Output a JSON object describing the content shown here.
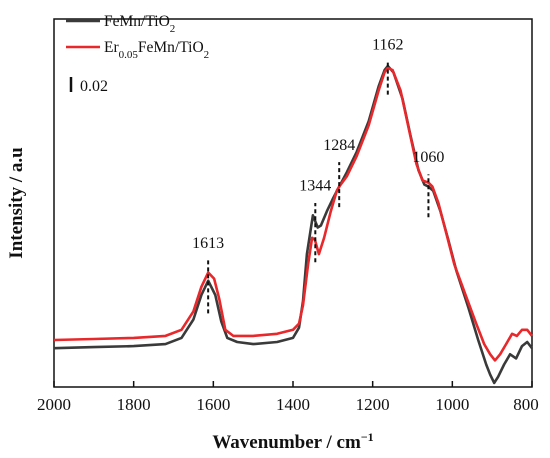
{
  "chart_data": {
    "type": "line",
    "xlabel": "Wavenumber / cm",
    "xlabel_sup": "−1",
    "ylabel": "Intensity / a.u",
    "xlim": [
      2000,
      800
    ],
    "x_reversed": true,
    "y_ticks_shown": false,
    "ylim": [
      -0.155,
      0.025
    ],
    "x_ticks": [
      "2000",
      "1800",
      "1600",
      "1400",
      "1200",
      "1000",
      "800"
    ],
    "x_tick_values": [
      2000,
      1800,
      1600,
      1400,
      1200,
      1000,
      800
    ],
    "scale_bar": {
      "label": "0.02",
      "value": 0.02
    },
    "legend": {
      "position": "top-left",
      "items": [
        {
          "text_main": "FeMn/TiO",
          "sub": "2",
          "text_after": "",
          "text_tail": ""
        },
        {
          "text_main": "Er",
          "sub": "0.05",
          "text_after": "FeMn/TiO",
          "sub2": "2"
        }
      ]
    },
    "series": [
      {
        "name": "FeMn/TiO2",
        "color": "#3a3a3a",
        "points": [
          [
            2000,
            -0.136
          ],
          [
            1900,
            -0.1355
          ],
          [
            1800,
            -0.135
          ],
          [
            1720,
            -0.134
          ],
          [
            1680,
            -0.131
          ],
          [
            1650,
            -0.122
          ],
          [
            1630,
            -0.11
          ],
          [
            1613,
            -0.103
          ],
          [
            1595,
            -0.11
          ],
          [
            1580,
            -0.123
          ],
          [
            1565,
            -0.131
          ],
          [
            1540,
            -0.133
          ],
          [
            1500,
            -0.134
          ],
          [
            1440,
            -0.133
          ],
          [
            1400,
            -0.131
          ],
          [
            1385,
            -0.126
          ],
          [
            1375,
            -0.113
          ],
          [
            1365,
            -0.09
          ],
          [
            1350,
            -0.071
          ],
          [
            1338,
            -0.077
          ],
          [
            1330,
            -0.076
          ],
          [
            1315,
            -0.069
          ],
          [
            1300,
            -0.063
          ],
          [
            1284,
            -0.057
          ],
          [
            1265,
            -0.05
          ],
          [
            1240,
            -0.04
          ],
          [
            1210,
            -0.025
          ],
          [
            1185,
            -0.008
          ],
          [
            1170,
            0.0
          ],
          [
            1162,
            0.002
          ],
          [
            1148,
            -0.001
          ],
          [
            1125,
            -0.014
          ],
          [
            1105,
            -0.032
          ],
          [
            1085,
            -0.049
          ],
          [
            1070,
            -0.056
          ],
          [
            1060,
            -0.057
          ],
          [
            1048,
            -0.059
          ],
          [
            1030,
            -0.069
          ],
          [
            1010,
            -0.083
          ],
          [
            990,
            -0.098
          ],
          [
            960,
            -0.116
          ],
          [
            935,
            -0.132
          ],
          [
            915,
            -0.144
          ],
          [
            905,
            -0.149
          ],
          [
            895,
            -0.153
          ],
          [
            885,
            -0.15
          ],
          [
            870,
            -0.144
          ],
          [
            855,
            -0.139
          ],
          [
            840,
            -0.141
          ],
          [
            825,
            -0.135
          ],
          [
            812,
            -0.133
          ],
          [
            800,
            -0.136
          ]
        ]
      },
      {
        "name": "Er0.05FeMn/TiO2",
        "color": "#e8282b",
        "points": [
          [
            2000,
            -0.132
          ],
          [
            1900,
            -0.1315
          ],
          [
            1800,
            -0.131
          ],
          [
            1720,
            -0.13
          ],
          [
            1680,
            -0.127
          ],
          [
            1650,
            -0.118
          ],
          [
            1630,
            -0.106
          ],
          [
            1613,
            -0.099
          ],
          [
            1598,
            -0.102
          ],
          [
            1585,
            -0.112
          ],
          [
            1570,
            -0.127
          ],
          [
            1550,
            -0.13
          ],
          [
            1500,
            -0.13
          ],
          [
            1440,
            -0.129
          ],
          [
            1400,
            -0.127
          ],
          [
            1385,
            -0.124
          ],
          [
            1375,
            -0.115
          ],
          [
            1362,
            -0.095
          ],
          [
            1352,
            -0.082
          ],
          [
            1345,
            -0.083
          ],
          [
            1335,
            -0.09
          ],
          [
            1322,
            -0.082
          ],
          [
            1305,
            -0.069
          ],
          [
            1290,
            -0.059
          ],
          [
            1284,
            -0.057
          ],
          [
            1265,
            -0.052
          ],
          [
            1240,
            -0.042
          ],
          [
            1210,
            -0.027
          ],
          [
            1185,
            -0.01
          ],
          [
            1170,
            -0.001
          ],
          [
            1162,
            0.001
          ],
          [
            1150,
            0.0
          ],
          [
            1130,
            -0.01
          ],
          [
            1110,
            -0.028
          ],
          [
            1090,
            -0.046
          ],
          [
            1075,
            -0.054
          ],
          [
            1060,
            -0.055
          ],
          [
            1050,
            -0.057
          ],
          [
            1035,
            -0.065
          ],
          [
            1015,
            -0.08
          ],
          [
            995,
            -0.095
          ],
          [
            965,
            -0.111
          ],
          [
            940,
            -0.124
          ],
          [
            920,
            -0.134
          ],
          [
            905,
            -0.139
          ],
          [
            893,
            -0.142
          ],
          [
            880,
            -0.139
          ],
          [
            865,
            -0.134
          ],
          [
            850,
            -0.129
          ],
          [
            838,
            -0.13
          ],
          [
            825,
            -0.127
          ],
          [
            812,
            -0.127
          ],
          [
            800,
            -0.13
          ]
        ]
      }
    ],
    "annotations": [
      {
        "label": "1613",
        "x": 1613,
        "line_y": [
          -0.119,
          -0.093
        ],
        "label_y": -0.087
      },
      {
        "label": "1344",
        "x": 1344,
        "line_y": [
          -0.094,
          -0.065
        ],
        "label_y": -0.059
      },
      {
        "label": "1284",
        "x": 1284,
        "line_y": [
          -0.067,
          -0.045
        ],
        "label_y": -0.039
      },
      {
        "label": "1162",
        "x": 1162,
        "line_y": [
          -0.012,
          0.004
        ],
        "label_y": 0.01
      },
      {
        "label": "1060",
        "x": 1060,
        "line_y": [
          -0.072,
          -0.051
        ],
        "label_y": -0.045
      }
    ]
  }
}
